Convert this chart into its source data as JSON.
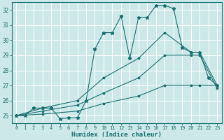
{
  "title": "",
  "xlabel": "Humidex (Indice chaleur)",
  "bg_color": "#cde8e8",
  "line_color": "#1a7070",
  "grid_color": "#ffffff",
  "xlim": [
    -0.5,
    23.5
  ],
  "ylim": [
    24.5,
    32.5
  ],
  "yticks": [
    25,
    26,
    27,
    28,
    29,
    30,
    31,
    32
  ],
  "xticks": [
    0,
    1,
    2,
    3,
    4,
    5,
    6,
    7,
    8,
    9,
    10,
    11,
    12,
    13,
    14,
    15,
    16,
    17,
    18,
    19,
    20,
    21,
    22,
    23
  ],
  "lines": [
    {
      "x": [
        0,
        1,
        2,
        3,
        4,
        5,
        6,
        7,
        8,
        9,
        10,
        11,
        12,
        13,
        14,
        15,
        16,
        17,
        18,
        19,
        20,
        21,
        22,
        23
      ],
      "y": [
        25,
        25,
        25.5,
        25.5,
        25.5,
        24.8,
        24.85,
        24.85,
        26.0,
        29.4,
        30.5,
        30.5,
        31.6,
        28.8,
        31.5,
        31.5,
        32.3,
        32.3,
        32.1,
        29.5,
        29.2,
        29.2,
        27.5,
        27.0
      ]
    },
    {
      "x": [
        0,
        3,
        7,
        10,
        14,
        17,
        20,
        21,
        23
      ],
      "y": [
        25,
        25.5,
        26.0,
        27.5,
        28.8,
        30.5,
        29.2,
        29.2,
        27.0
      ]
    },
    {
      "x": [
        0,
        3,
        7,
        10,
        14,
        17,
        20,
        21,
        23
      ],
      "y": [
        25,
        25.3,
        25.7,
        26.5,
        27.5,
        29.0,
        29.0,
        29.0,
        26.8
      ]
    },
    {
      "x": [
        0,
        3,
        7,
        10,
        14,
        17,
        20,
        21,
        23
      ],
      "y": [
        25,
        25.1,
        25.3,
        25.8,
        26.3,
        27.0,
        27.0,
        27.0,
        27.0
      ]
    }
  ]
}
